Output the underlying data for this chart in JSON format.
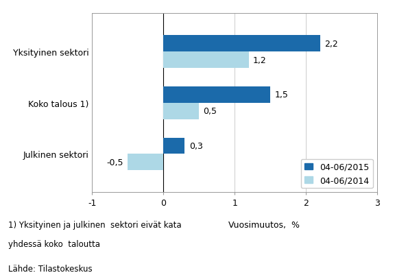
{
  "categories": [
    "Julkinen sektori",
    "Koko talous 1)",
    "Yksityinen sektori"
  ],
  "values_2015": [
    0.3,
    1.5,
    2.2
  ],
  "values_2014": [
    -0.5,
    0.5,
    1.2
  ],
  "color_2015": "#1B6AAA",
  "color_2014": "#ADD8E6",
  "xlim": [
    -1,
    3
  ],
  "xticks": [
    -1,
    0,
    1,
    2,
    3
  ],
  "legend_labels": [
    "04-06/2015",
    "04-06/2014"
  ],
  "xlabel": "Vuosimuutos,  %",
  "footnote1": "1) Yksityinen ja julkinen  sektori eivät kata",
  "footnote2": "yhdessä koko  taloutta",
  "footnote3": "Lähde: Tilastokeskus",
  "bar_height": 0.32,
  "label_fontsize": 9,
  "tick_fontsize": 9,
  "xlabel_fontsize": 9,
  "legend_fontsize": 9,
  "footnote_fontsize": 8.5
}
